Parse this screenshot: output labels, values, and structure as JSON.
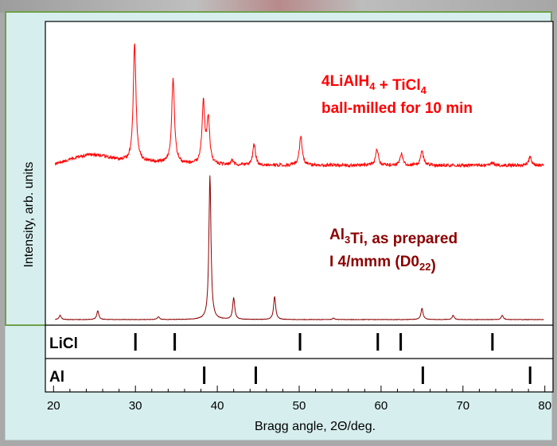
{
  "chart_data": {
    "type": "line",
    "title": "",
    "xlabel": "Bragg angle, 2Θ/deg.",
    "ylabel": "Intensity, arb. units",
    "xlim": [
      19,
      81
    ],
    "xticks": [
      20,
      30,
      40,
      50,
      60,
      70,
      80
    ],
    "grid": false,
    "series": [
      {
        "name": "4LiAlH4 + TiCl4 ball-milled for 10 min",
        "label_lines": [
          {
            "parts": [
              {
                "t": "4LiAlH"
              },
              {
                "t": "4",
                "sub": true
              },
              {
                "t": " +  TiCl"
              },
              {
                "t": "4",
                "sub": true
              }
            ]
          },
          {
            "parts": [
              {
                "t": "ball-milled for 10 min"
              }
            ]
          }
        ],
        "color": "#ff0000",
        "baseline": 0.26,
        "peaks": [
          {
            "x": 29.9,
            "h": 1.0
          },
          {
            "x": 34.6,
            "h": 0.72
          },
          {
            "x": 38.3,
            "h": 0.52
          },
          {
            "x": 38.9,
            "h": 0.38
          },
          {
            "x": 41.8,
            "h": 0.04
          },
          {
            "x": 44.5,
            "h": 0.18
          },
          {
            "x": 50.2,
            "h": 0.25
          },
          {
            "x": 59.5,
            "h": 0.14
          },
          {
            "x": 62.5,
            "h": 0.1
          },
          {
            "x": 65.0,
            "h": 0.13
          },
          {
            "x": 73.6,
            "h": 0.02
          },
          {
            "x": 78.2,
            "h": 0.07
          }
        ]
      },
      {
        "name": "Al3Ti, as prepared I 4/mmm (D022)",
        "label_lines": [
          {
            "parts": [
              {
                "t": "Al"
              },
              {
                "t": "3",
                "sub": true
              },
              {
                "t": "Ti, as prepared"
              }
            ]
          },
          {
            "parts": [
              {
                "t": "I 4/mmm (D0"
              },
              {
                "t": "22",
                "sub": true
              },
              {
                "t": ")"
              }
            ]
          }
        ],
        "color": "#8b0000",
        "baseline": 0.0,
        "peaks": [
          {
            "x": 20.8,
            "h": 0.03
          },
          {
            "x": 25.4,
            "h": 0.06
          },
          {
            "x": 32.8,
            "h": 0.02
          },
          {
            "x": 39.1,
            "h": 1.0
          },
          {
            "x": 42.0,
            "h": 0.15
          },
          {
            "x": 47.0,
            "h": 0.16
          },
          {
            "x": 54.2,
            "h": 0.01
          },
          {
            "x": 65.0,
            "h": 0.08
          },
          {
            "x": 68.8,
            "h": 0.03
          },
          {
            "x": 74.8,
            "h": 0.03
          }
        ]
      }
    ],
    "reference_patterns": [
      {
        "name": "LiCl",
        "positions": [
          30.0,
          34.8,
          50.1,
          59.6,
          62.4,
          73.6
        ]
      },
      {
        "name": "Al",
        "positions": [
          38.4,
          44.7,
          65.1,
          78.2
        ]
      }
    ]
  }
}
